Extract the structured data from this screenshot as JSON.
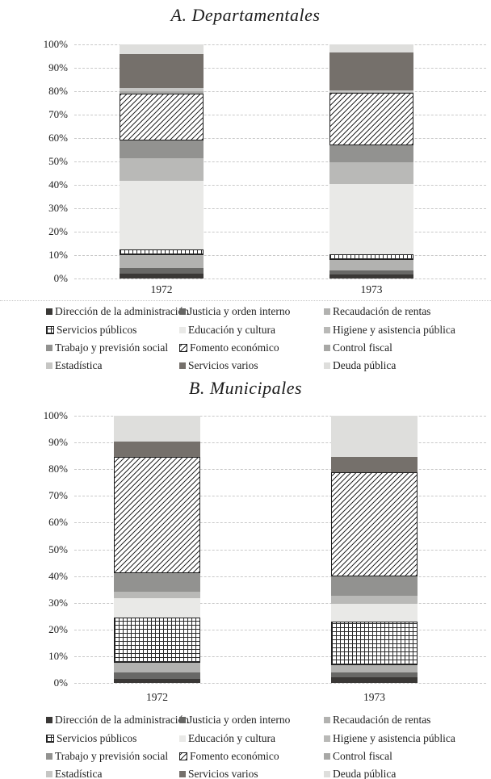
{
  "style": {
    "background": "#ffffff",
    "text_color": "#1f1f1f",
    "gridline_color": "#c9c9c9",
    "pattern_line_color": "#2a2a2a"
  },
  "chart_data": [
    {
      "type": "bar",
      "subtype": "stacked-100",
      "title": "A. Departamentales",
      "categories": [
        "1972",
        "1973"
      ],
      "y_ticks": [
        "100%",
        "90%",
        "80%",
        "70%",
        "60%",
        "50%",
        "40%",
        "30%",
        "20%",
        "10%",
        "0%"
      ],
      "ylim": [
        0,
        100
      ],
      "grid": true,
      "legend_position": "bottom",
      "series": [
        {
          "name": "Dirección de la administración",
          "pattern": "solid",
          "color": "#3a3836",
          "values": [
            2.0,
            1.7
          ]
        },
        {
          "name": "Justicia y orden interno",
          "pattern": "solid",
          "color": "#686866",
          "values": [
            2.6,
            1.7
          ]
        },
        {
          "name": "Recaudación de rentas",
          "pattern": "solid",
          "color": "#b2b2b0",
          "values": [
            5.4,
            4.6
          ]
        },
        {
          "name": "Servicios públicos",
          "pattern": "grid",
          "color": "#ffffff",
          "values": [
            2.3,
            2.3
          ]
        },
        {
          "name": "Educación y cultura",
          "pattern": "solid",
          "color": "#e9e9e7",
          "values": [
            29.5,
            30.0
          ]
        },
        {
          "name": "Higiene y asistencia pública",
          "pattern": "solid",
          "color": "#b9b9b7",
          "values": [
            9.7,
            9.2
          ]
        },
        {
          "name": "Trabajo y previsión social",
          "pattern": "solid",
          "color": "#929290",
          "values": [
            7.5,
            7.5
          ]
        },
        {
          "name": "Fomento económico",
          "pattern": "hatch",
          "color": "#ffffff",
          "values": [
            20.0,
            22.3
          ]
        },
        {
          "name": "Control fiscal",
          "pattern": "solid",
          "color": "#a8a8a6",
          "values": [
            1.0,
            0.5
          ]
        },
        {
          "name": "Estadística",
          "pattern": "solid",
          "color": "#c6c6c4",
          "values": [
            1.5,
            0.6
          ]
        },
        {
          "name": "Servicios varios",
          "pattern": "solid",
          "color": "#75706b",
          "values": [
            14.5,
            16.0
          ]
        },
        {
          "name": "Deuda pública",
          "pattern": "solid",
          "color": "#dededc",
          "values": [
            4.0,
            3.6
          ]
        }
      ]
    },
    {
      "type": "bar",
      "subtype": "stacked-100",
      "title": "B. Municipales",
      "categories": [
        "1972",
        "1973"
      ],
      "y_ticks": [
        "100%",
        "90%",
        "80%",
        "70%",
        "60%",
        "50%",
        "40%",
        "30%",
        "20%",
        "10%",
        "0%"
      ],
      "ylim": [
        0,
        100
      ],
      "grid": true,
      "legend_position": "bottom",
      "series": [
        {
          "name": "Dirección de la administración",
          "pattern": "solid",
          "color": "#3a3836",
          "values": [
            1.5,
            2.0
          ]
        },
        {
          "name": "Justicia y orden interno",
          "pattern": "solid",
          "color": "#686866",
          "values": [
            2.3,
            2.0
          ]
        },
        {
          "name": "Recaudación de rentas",
          "pattern": "solid",
          "color": "#b2b2b0",
          "values": [
            3.6,
            2.5
          ]
        },
        {
          "name": "Servicios públicos",
          "pattern": "grid",
          "color": "#ffffff",
          "values": [
            17.1,
            16.5
          ]
        },
        {
          "name": "Educación y cultura",
          "pattern": "solid",
          "color": "#e9e9e7",
          "values": [
            7.1,
            6.5
          ]
        },
        {
          "name": "Higiene y asistencia pública",
          "pattern": "solid",
          "color": "#b9b9b7",
          "values": [
            2.5,
            3.0
          ]
        },
        {
          "name": "Trabajo y previsión social",
          "pattern": "solid",
          "color": "#929290",
          "values": [
            7.1,
            7.5
          ]
        },
        {
          "name": "Fomento económico",
          "pattern": "hatch",
          "color": "#ffffff",
          "values": [
            43.4,
            38.8
          ]
        },
        {
          "name": "Control fiscal",
          "pattern": "solid",
          "color": "#a8a8a6",
          "values": [
            0,
            0
          ]
        },
        {
          "name": "Estadística",
          "pattern": "solid",
          "color": "#c6c6c4",
          "values": [
            0,
            0
          ]
        },
        {
          "name": "Servicios varios",
          "pattern": "solid",
          "color": "#75706b",
          "values": [
            5.6,
            5.7
          ]
        },
        {
          "name": "Deuda pública",
          "pattern": "solid",
          "color": "#dededc",
          "values": [
            9.8,
            15.5
          ]
        }
      ]
    }
  ]
}
